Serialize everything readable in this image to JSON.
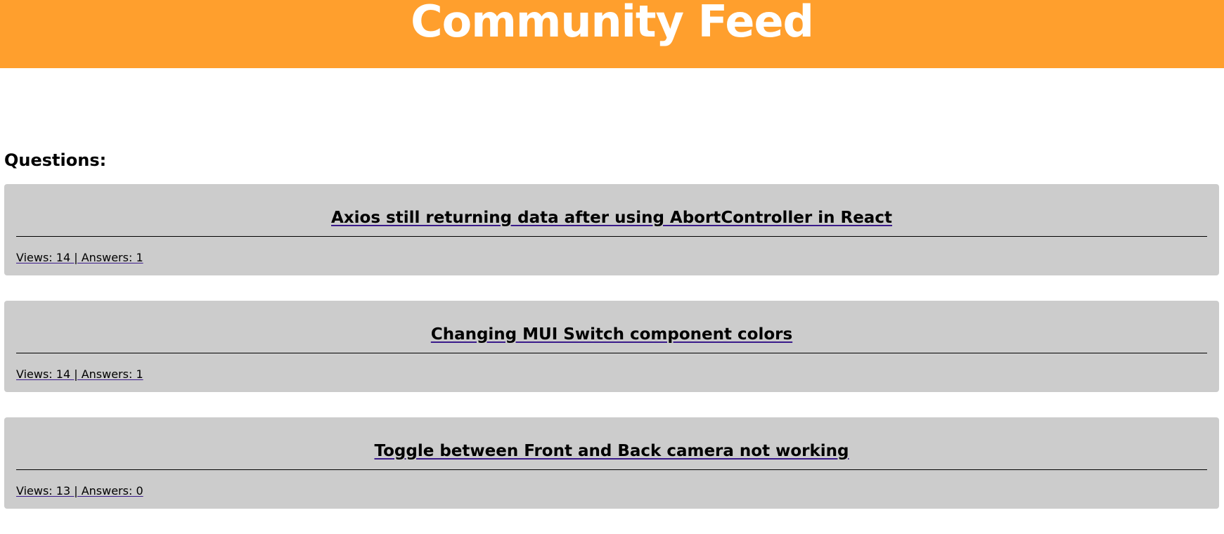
{
  "header": {
    "title": "Community Feed",
    "background_color": "#ff9f2d"
  },
  "questions_heading": "Questions:",
  "questions": [
    {
      "title": "Axios still returning data after using AbortController in React",
      "meta": "Views: 14 | Answers: 1"
    },
    {
      "title": "Changing MUI Switch component colors",
      "meta": "Views: 14 | Answers: 1"
    },
    {
      "title": "Toggle between Front and Back camera not working",
      "meta": "Views: 13 | Answers: 0"
    }
  ],
  "colors": {
    "card_background": "#cccccc",
    "link_underline": "#3a1a8a"
  }
}
